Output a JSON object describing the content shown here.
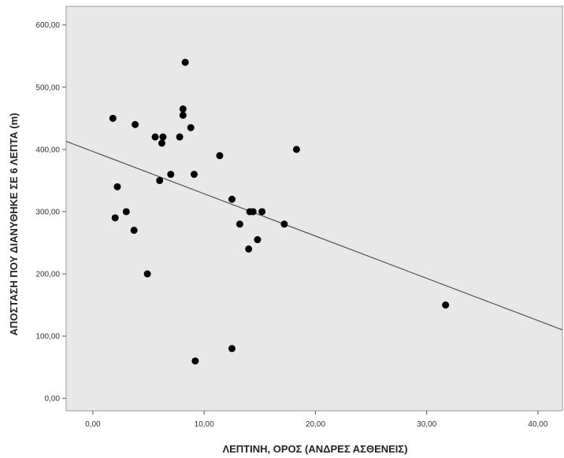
{
  "chart_data": {
    "type": "scatter",
    "xlabel": "ΛΕΠΤΙΝΗ, ΟΡΟΣ (ΑΝΔΡΕΣ ΑΣΘΕΝΕΙΣ)",
    "ylabel": "ΑΠΟΣΤΑΣΗ ΠΟΥ ΔΙΑΝΥΘΗΚΕ ΣΕ 6 ΛΕΠΤΑ (m)",
    "xlim": [
      -2.4,
      42.2
    ],
    "ylim": [
      -20,
      630
    ],
    "x_ticks": [
      0,
      10,
      20,
      30,
      40
    ],
    "x_tick_labels": [
      "0,00",
      "10,00",
      "20,00",
      "30,00",
      "40,00"
    ],
    "y_ticks": [
      0,
      100,
      200,
      300,
      400,
      500,
      600
    ],
    "y_tick_labels": [
      "0,00",
      "100,00",
      "200,00",
      "300,00",
      "400,00",
      "500,00",
      "600,00"
    ],
    "grid": false,
    "plot_background": "#e8e8e8",
    "point_color": "#000000",
    "line_color": "#555555",
    "points": [
      {
        "x": 1.8,
        "y": 450
      },
      {
        "x": 2.0,
        "y": 290
      },
      {
        "x": 2.2,
        "y": 340
      },
      {
        "x": 3.0,
        "y": 300
      },
      {
        "x": 3.7,
        "y": 270
      },
      {
        "x": 3.8,
        "y": 440
      },
      {
        "x": 4.9,
        "y": 200
      },
      {
        "x": 5.6,
        "y": 420
      },
      {
        "x": 6.0,
        "y": 350
      },
      {
        "x": 6.2,
        "y": 410
      },
      {
        "x": 6.3,
        "y": 420
      },
      {
        "x": 7.0,
        "y": 360
      },
      {
        "x": 7.8,
        "y": 420
      },
      {
        "x": 8.1,
        "y": 465
      },
      {
        "x": 8.1,
        "y": 455
      },
      {
        "x": 8.3,
        "y": 540
      },
      {
        "x": 8.8,
        "y": 435
      },
      {
        "x": 9.1,
        "y": 360
      },
      {
        "x": 9.2,
        "y": 60
      },
      {
        "x": 11.4,
        "y": 390
      },
      {
        "x": 12.5,
        "y": 320
      },
      {
        "x": 12.5,
        "y": 80
      },
      {
        "x": 13.2,
        "y": 280
      },
      {
        "x": 14.0,
        "y": 240
      },
      {
        "x": 14.1,
        "y": 300
      },
      {
        "x": 14.4,
        "y": 300
      },
      {
        "x": 14.8,
        "y": 255
      },
      {
        "x": 15.2,
        "y": 300
      },
      {
        "x": 17.2,
        "y": 280
      },
      {
        "x": 18.3,
        "y": 400
      },
      {
        "x": 31.7,
        "y": 150
      }
    ],
    "fit_line": {
      "x": [
        -2.4,
        42.2
      ],
      "y": [
        413,
        110
      ]
    }
  }
}
